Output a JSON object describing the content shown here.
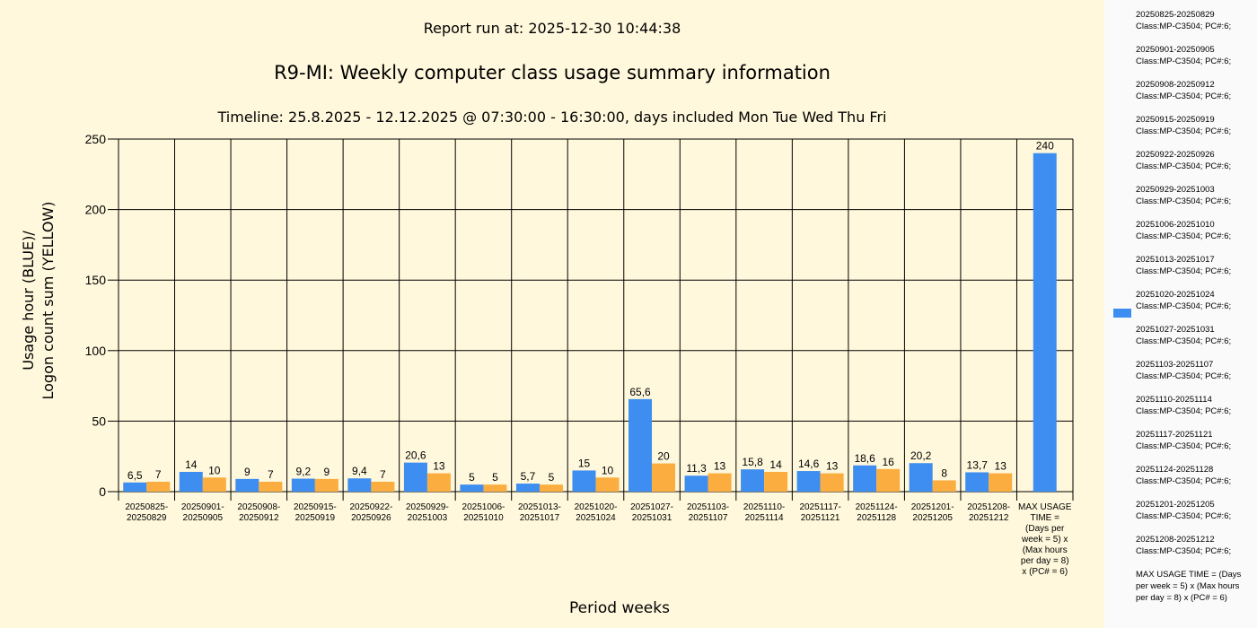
{
  "report_run": "Report run at: 2025-12-30 10:44:38",
  "colors": {
    "usage": "#3d8ef0",
    "logon": "#fbad3f",
    "background": "#fff8dc",
    "legend_bg": "#fafafa"
  },
  "legend": {
    "items": [
      "20250825-20250829 Class:MP-C3504; PC#:6;",
      "20250901-20250905 Class:MP-C3504; PC#:6;",
      "20250908-20250912 Class:MP-C3504; PC#:6;",
      "20250915-20250919 Class:MP-C3504; PC#:6;",
      "20250922-20250926 Class:MP-C3504; PC#:6;",
      "20250929-20251003 Class:MP-C3504; PC#:6;",
      "20251006-20251010 Class:MP-C3504; PC#:6;",
      "20251013-20251017 Class:MP-C3504; PC#:6;",
      "20251020-20251024 Class:MP-C3504; PC#:6;",
      "20251027-20251031 Class:MP-C3504; PC#:6;",
      "20251103-20251107 Class:MP-C3504; PC#:6;",
      "20251110-20251114 Class:MP-C3504; PC#:6;",
      "20251117-20251121 Class:MP-C3504; PC#:6;",
      "20251124-20251128 Class:MP-C3504; PC#:6;",
      "20251201-20251205 Class:MP-C3504; PC#:6;",
      "20251208-20251212 Class:MP-C3504; PC#:6;",
      "MAX USAGE TIME = (Days per week = 5) x (Max hours per day = 8) x (PC# = 6)"
    ]
  },
  "chart_data": {
    "type": "bar",
    "title": "R9-MI: Weekly computer class usage summary information",
    "subtitle": "Timeline:  25.8.2025  - 12.12.2025  @  07:30:00 -  16:30:00, days included Mon Tue Wed Thu Fri",
    "xlabel": "Period weeks",
    "ylabel": "Usage hour (BLUE)/ Logon count sum (YELLOW)",
    "ylabel_lines": [
      "Usage hour (BLUE)/",
      "Logon count sum (YELLOW)"
    ],
    "ylim": [
      0,
      250
    ],
    "yticks": [
      0,
      50,
      100,
      150,
      200,
      250
    ],
    "grid": true,
    "categories": [
      "20250825-20250829",
      "20250901-20250905",
      "20250908-20250912",
      "20250915-20250919",
      "20250922-20250926",
      "20250929-20251003",
      "20251006-20251010",
      "20251013-20251017",
      "20251020-20251024",
      "20251027-20251031",
      "20251103-20251107",
      "20251110-20251114",
      "20251117-20251121",
      "20251124-20251128",
      "20251201-20251205",
      "20251208-20251212",
      "MAX USAGE TIME = (Days per week = 5) x (Max hours per day = 8) x (PC# = 6)"
    ],
    "category_label_lines": [
      [
        "20250825-",
        "20250829"
      ],
      [
        "20250901-",
        "20250905"
      ],
      [
        "20250908-",
        "20250912"
      ],
      [
        "20250915-",
        "20250919"
      ],
      [
        "20250922-",
        "20250926"
      ],
      [
        "20250929-",
        "20251003"
      ],
      [
        "20251006-",
        "20251010"
      ],
      [
        "20251013-",
        "20251017"
      ],
      [
        "20251020-",
        "20251024"
      ],
      [
        "20251027-",
        "20251031"
      ],
      [
        "20251103-",
        "20251107"
      ],
      [
        "20251110-",
        "20251114"
      ],
      [
        "20251117-",
        "20251121"
      ],
      [
        "20251124-",
        "20251128"
      ],
      [
        "20251201-",
        "20251205"
      ],
      [
        "20251208-",
        "20251212"
      ],
      [
        "MAX USAGE",
        "TIME =",
        "(Days per",
        "week = 5) x",
        "(Max hours",
        "per day = 8)",
        "x (PC# = 6)"
      ]
    ],
    "series": [
      {
        "values": [
          6.5,
          14,
          9,
          9.2,
          9.4,
          20.6,
          5,
          5.7,
          15,
          65.6,
          11.3,
          15.8,
          14.6,
          18.6,
          20.2,
          13.7,
          240
        ],
        "labels": [
          "6,5",
          "14",
          "9",
          "9,2",
          "9,4",
          "20,6",
          "5",
          "5,7",
          "15",
          "65,6",
          "11,3",
          "15,8",
          "14,6",
          "18,6",
          "20,2",
          "13,7",
          "240"
        ]
      },
      {
        "values": [
          7,
          10,
          7,
          9,
          7,
          13,
          5,
          5,
          10,
          20,
          13,
          14,
          13,
          16,
          8,
          13,
          null
        ],
        "labels": [
          "7",
          "10",
          "7",
          "9",
          "7",
          "13",
          "5",
          "5",
          "10",
          "20",
          "13",
          "14",
          "13",
          "16",
          "8",
          "13",
          null
        ]
      }
    ]
  }
}
